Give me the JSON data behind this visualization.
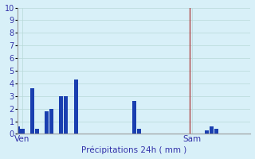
{
  "background_color": "#d8f0f8",
  "bar_color": "#1a3fb0",
  "grid_color": "#b8d8d8",
  "vline_color": "#aa3333",
  "xlabel": "Précipitations 24h ( mm )",
  "ylim": [
    0,
    10
  ],
  "yticks": [
    0,
    1,
    2,
    3,
    4,
    5,
    6,
    7,
    8,
    9,
    10
  ],
  "bar_positions": [
    0,
    1,
    2,
    3,
    4,
    5,
    6,
    7,
    8,
    9,
    10,
    11,
    12,
    13,
    14,
    15,
    16,
    17,
    18,
    19,
    20,
    21,
    22,
    23,
    24,
    25,
    26,
    27,
    28,
    29,
    30,
    31,
    32,
    33,
    34,
    35,
    36,
    37,
    38,
    39,
    40,
    41,
    42,
    43,
    44,
    45,
    46,
    47
  ],
  "bar_heights": [
    0.6,
    0.4,
    0.0,
    3.6,
    0.4,
    0.0,
    1.8,
    2.0,
    0.0,
    3.0,
    3.0,
    0.0,
    4.3,
    0.0,
    0.0,
    0.0,
    0.0,
    0.0,
    0.0,
    0.0,
    0.0,
    0.0,
    0.0,
    0.0,
    2.6,
    0.4,
    0.0,
    0.0,
    0.0,
    0.0,
    0.0,
    0.0,
    0.0,
    0.0,
    0.0,
    0.0,
    0.0,
    0.0,
    0.0,
    0.3,
    0.6,
    0.4,
    0.0,
    0.0,
    0.0,
    0.0,
    0.0,
    0.0
  ],
  "ven_x": 1,
  "sam_x": 36,
  "vline_x": 35.5,
  "xlim": [
    0,
    48
  ]
}
